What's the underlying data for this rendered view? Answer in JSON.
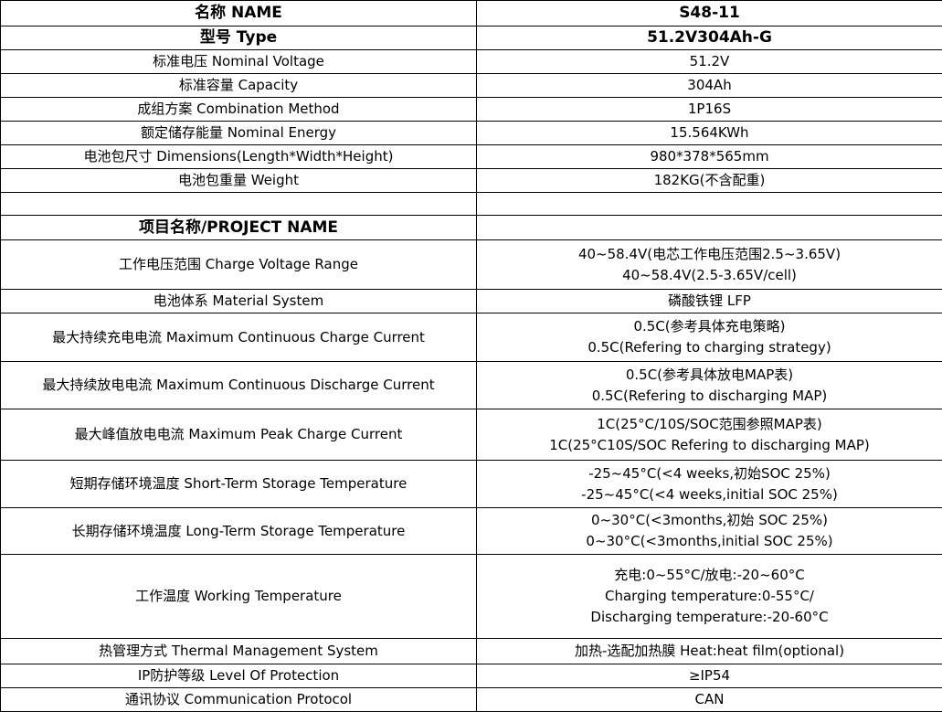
{
  "rows": [
    {
      "label": "名称 NAME",
      "value": "S48-11",
      "bold": true
    },
    {
      "label": "型号 Type",
      "value": "51.2V304Ah-G",
      "bold": true
    },
    {
      "label": "标准电压 Nominal Voltage",
      "value": "51.2V"
    },
    {
      "label": "标准容量 Capacity",
      "value": "304Ah"
    },
    {
      "label": "成组方案 Combination Method",
      "value": "1P16S"
    },
    {
      "label": "额定储存能量 Nominal Energy",
      "value": "15.564KWh"
    },
    {
      "label": "电池包尺寸 Dimensions(Length*Width*Height)",
      "value": "980*378*565mm"
    },
    {
      "label": "电池包重量 Weight",
      "value": "182KG(不含配重)"
    },
    {
      "label": "",
      "value": ""
    },
    {
      "label": "项目名称/PROJECT NAME",
      "value": "",
      "bold": true
    },
    {
      "label": "工作电压范围 Charge Voltage Range",
      "value": "40~58.4V(电芯工作电压范围2.5~3.65V)\n40~58.4V(2.5-3.65V/cell)"
    },
    {
      "label": "电池体系 Material System",
      "value": "磷酸铁锂 LFP"
    },
    {
      "label": "最大持续充电电流 Maximum Continuous Charge Current",
      "value": "0.5C(参考具体充电策略)\n0.5C(Refering to charging strategy)"
    },
    {
      "label": "最大持续放电电流 Maximum Continuous Discharge Current",
      "value": "0.5C(参考具体放电MAP表)\n0.5C(Refering to discharging MAP)"
    },
    {
      "label": "最大峰值放电电流 Maximum Peak Charge Current",
      "value": "1C(25°C/10S/SOC范围参照MAP表)\n1C(25°C10S/SOC Refering to discharging MAP)"
    },
    {
      "label": "短期存储环境温度 Short-Term Storage Temperature",
      "value": "-25~45°C(<4 weeks,初始SOC 25%)\n-25~45°C(<4 weeks,initial SOC 25%)"
    },
    {
      "label": "长期存储环境温度 Long-Term Storage Temperature",
      "value": "0~30°C(<3months,初始 SOC 25%)\n0~30°C(<3months,initial SOC 25%)"
    },
    {
      "label": "工作温度   Working Temperature",
      "value": "充电:0~55°C/放电:-20~60°C\nCharging temperature:0-55°C/\nDischarging temperature:-20-60°C"
    },
    {
      "label": "热管理方式 Thermal Management System",
      "value": "加热-选配加热膜  Heat:heat film(optional)"
    },
    {
      "label": "IP防护等级 Level Of Protection",
      "value": "≥IP54"
    },
    {
      "label": "通讯协议 Communication Protocol",
      "value": "CAN"
    }
  ]
}
